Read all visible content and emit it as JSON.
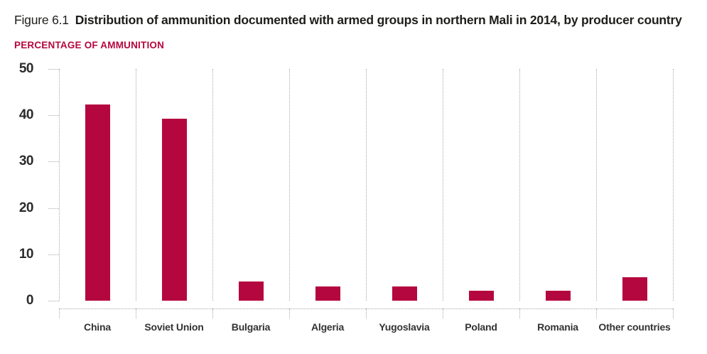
{
  "header": {
    "figure_label": "Figure 6.1",
    "title": "Distribution of ammunition documented with armed groups in northern Mali in 2014, by producer country",
    "axis_title": "PERCENTAGE OF AMMUNITION"
  },
  "colors": {
    "bar": "#b5073f",
    "accent_text": "#b5073f",
    "grid": "#aaaaaa",
    "title_text": "#1d1d1b",
    "axis_label_text": "#333333"
  },
  "chart_data": {
    "type": "bar",
    "title": "Figure 6.1 Distribution of ammunition documented with armed groups in northern Mali in 2014, by producer country",
    "ylabel": "PERCENTAGE OF AMMUNITION",
    "xlabel": "",
    "categories": [
      "China",
      "Soviet Union",
      "Bulgaria",
      "Algeria",
      "Yugoslavia",
      "Poland",
      "Romania",
      "Other countries"
    ],
    "values": [
      42.4,
      39.3,
      4.2,
      3.1,
      3.1,
      2.1,
      2.1,
      5.1
    ],
    "ylim": [
      0,
      50
    ],
    "yticks": [
      0,
      10,
      20,
      30,
      40,
      50
    ],
    "grid": "dotted vertical category separators and dotted axis ticks",
    "legend": "none",
    "bar_color": "#b5073f"
  }
}
